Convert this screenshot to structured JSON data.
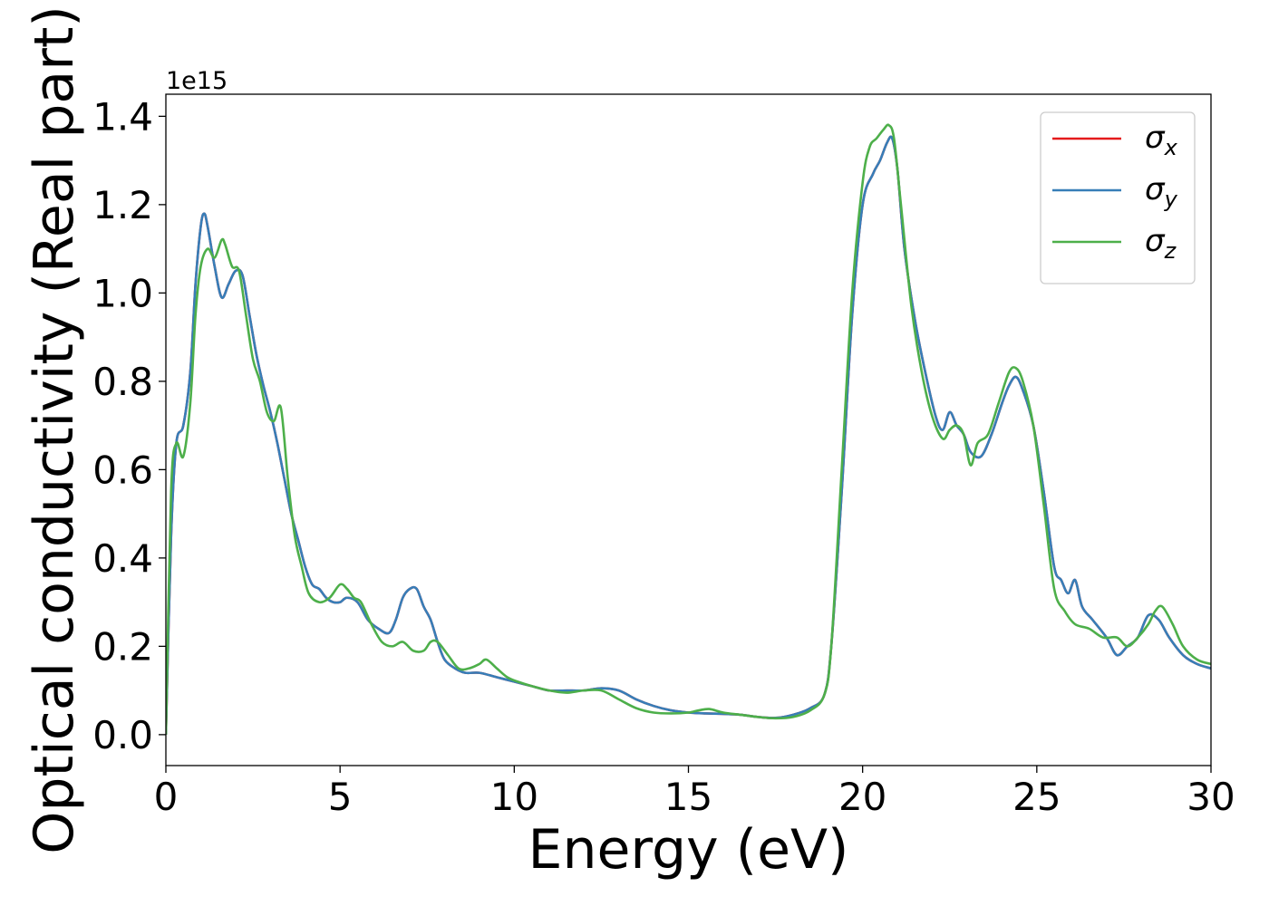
{
  "chart_data": {
    "type": "line",
    "xlabel": "Energy (eV)",
    "ylabel": "Optical conductivity (Real part)",
    "y_offset_label": "1e15",
    "xlim": [
      0,
      30
    ],
    "ylim": [
      -0.07,
      1.45
    ],
    "x_ticks": [
      0,
      5,
      10,
      15,
      20,
      25,
      30
    ],
    "x_tick_labels": [
      "0",
      "5",
      "10",
      "15",
      "20",
      "25",
      "30"
    ],
    "y_ticks": [
      0.0,
      0.2,
      0.4,
      0.6,
      0.8,
      1.0,
      1.2,
      1.4
    ],
    "y_tick_labels": [
      "0.0",
      "0.2",
      "0.4",
      "0.6",
      "0.8",
      "1.0",
      "1.2",
      "1.4"
    ],
    "grid": false,
    "legend_position": "upper right",
    "series": [
      {
        "name": "σx",
        "name_base": "σ",
        "name_sub": "x",
        "color": "#e41a1c",
        "x": [
          0,
          0.15,
          0.3,
          0.5,
          0.7,
          0.85,
          1.0,
          1.1,
          1.2,
          1.4,
          1.6,
          1.8,
          2.0,
          2.2,
          2.4,
          2.6,
          2.8,
          3.0,
          3.2,
          3.4,
          3.6,
          3.8,
          4.0,
          4.2,
          4.4,
          4.6,
          4.8,
          5.0,
          5.2,
          5.5,
          5.8,
          6.1,
          6.4,
          6.6,
          6.8,
          7.0,
          7.2,
          7.4,
          7.6,
          7.8,
          8.0,
          8.3,
          8.6,
          9.0,
          9.5,
          10.0,
          10.5,
          11.0,
          11.5,
          12.0,
          12.5,
          13.0,
          13.5,
          14.0,
          14.5,
          15.0,
          15.5,
          16.0,
          16.5,
          17.0,
          17.5,
          18.0,
          18.5,
          18.9,
          19.1,
          19.4,
          19.7,
          20.0,
          20.3,
          20.5,
          20.7,
          20.85,
          21.0,
          21.2,
          21.5,
          21.8,
          22.1,
          22.3,
          22.5,
          22.7,
          22.9,
          23.1,
          23.4,
          23.7,
          24.0,
          24.2,
          24.4,
          24.6,
          24.9,
          25.2,
          25.5,
          25.7,
          25.9,
          26.1,
          26.3,
          26.6,
          27.0,
          27.3,
          27.6,
          27.9,
          28.2,
          28.5,
          28.8,
          29.2,
          29.6,
          30.0
        ],
        "y": [
          0.0,
          0.45,
          0.66,
          0.7,
          0.82,
          1.02,
          1.15,
          1.18,
          1.15,
          1.06,
          0.99,
          1.02,
          1.05,
          1.04,
          0.95,
          0.86,
          0.79,
          0.73,
          0.66,
          0.58,
          0.5,
          0.44,
          0.38,
          0.34,
          0.33,
          0.31,
          0.3,
          0.3,
          0.31,
          0.3,
          0.26,
          0.24,
          0.23,
          0.26,
          0.31,
          0.33,
          0.33,
          0.29,
          0.26,
          0.21,
          0.17,
          0.15,
          0.14,
          0.14,
          0.13,
          0.12,
          0.11,
          0.1,
          0.1,
          0.1,
          0.105,
          0.1,
          0.08,
          0.065,
          0.055,
          0.05,
          0.048,
          0.047,
          0.045,
          0.04,
          0.038,
          0.045,
          0.06,
          0.09,
          0.2,
          0.55,
          0.95,
          1.2,
          1.27,
          1.3,
          1.34,
          1.35,
          1.28,
          1.1,
          0.94,
          0.82,
          0.72,
          0.69,
          0.73,
          0.7,
          0.68,
          0.64,
          0.63,
          0.68,
          0.75,
          0.79,
          0.81,
          0.78,
          0.7,
          0.55,
          0.38,
          0.35,
          0.32,
          0.35,
          0.29,
          0.26,
          0.22,
          0.18,
          0.2,
          0.22,
          0.27,
          0.26,
          0.22,
          0.18,
          0.16,
          0.15
        ]
      },
      {
        "name": "σy",
        "name_base": "σ",
        "name_sub": "y",
        "color": "#377eb8",
        "x": [
          0,
          0.15,
          0.3,
          0.5,
          0.7,
          0.85,
          1.0,
          1.1,
          1.2,
          1.4,
          1.6,
          1.8,
          2.0,
          2.2,
          2.4,
          2.6,
          2.8,
          3.0,
          3.2,
          3.4,
          3.6,
          3.8,
          4.0,
          4.2,
          4.4,
          4.6,
          4.8,
          5.0,
          5.2,
          5.5,
          5.8,
          6.1,
          6.4,
          6.6,
          6.8,
          7.0,
          7.2,
          7.4,
          7.6,
          7.8,
          8.0,
          8.3,
          8.6,
          9.0,
          9.5,
          10.0,
          10.5,
          11.0,
          11.5,
          12.0,
          12.5,
          13.0,
          13.5,
          14.0,
          14.5,
          15.0,
          15.5,
          16.0,
          16.5,
          17.0,
          17.5,
          18.0,
          18.5,
          18.9,
          19.1,
          19.4,
          19.7,
          20.0,
          20.3,
          20.5,
          20.7,
          20.85,
          21.0,
          21.2,
          21.5,
          21.8,
          22.1,
          22.3,
          22.5,
          22.7,
          22.9,
          23.1,
          23.4,
          23.7,
          24.0,
          24.2,
          24.4,
          24.6,
          24.9,
          25.2,
          25.5,
          25.7,
          25.9,
          26.1,
          26.3,
          26.6,
          27.0,
          27.3,
          27.6,
          27.9,
          28.2,
          28.5,
          28.8,
          29.2,
          29.6,
          30.0
        ],
        "y": [
          0.0,
          0.45,
          0.66,
          0.7,
          0.82,
          1.02,
          1.15,
          1.18,
          1.15,
          1.06,
          0.99,
          1.02,
          1.05,
          1.04,
          0.95,
          0.86,
          0.79,
          0.73,
          0.66,
          0.58,
          0.5,
          0.44,
          0.38,
          0.34,
          0.33,
          0.31,
          0.3,
          0.3,
          0.31,
          0.3,
          0.26,
          0.24,
          0.23,
          0.26,
          0.31,
          0.33,
          0.33,
          0.29,
          0.26,
          0.21,
          0.17,
          0.15,
          0.14,
          0.14,
          0.13,
          0.12,
          0.11,
          0.1,
          0.1,
          0.1,
          0.105,
          0.1,
          0.08,
          0.065,
          0.055,
          0.05,
          0.048,
          0.047,
          0.045,
          0.04,
          0.038,
          0.045,
          0.06,
          0.09,
          0.2,
          0.55,
          0.95,
          1.2,
          1.27,
          1.3,
          1.34,
          1.35,
          1.28,
          1.1,
          0.94,
          0.82,
          0.72,
          0.69,
          0.73,
          0.7,
          0.68,
          0.64,
          0.63,
          0.68,
          0.75,
          0.79,
          0.81,
          0.78,
          0.7,
          0.55,
          0.38,
          0.35,
          0.32,
          0.35,
          0.29,
          0.26,
          0.22,
          0.18,
          0.2,
          0.22,
          0.27,
          0.26,
          0.22,
          0.18,
          0.16,
          0.15
        ]
      },
      {
        "name": "σz",
        "name_base": "σ",
        "name_sub": "z",
        "color": "#4daf4a",
        "x": [
          0,
          0.15,
          0.3,
          0.5,
          0.7,
          0.85,
          1.0,
          1.2,
          1.4,
          1.6,
          1.7,
          1.9,
          2.1,
          2.3,
          2.5,
          2.7,
          2.9,
          3.1,
          3.3,
          3.5,
          3.7,
          3.9,
          4.1,
          4.4,
          4.7,
          5.0,
          5.2,
          5.4,
          5.6,
          5.9,
          6.2,
          6.5,
          6.8,
          7.1,
          7.4,
          7.6,
          7.8,
          8.1,
          8.4,
          8.7,
          9.0,
          9.2,
          9.5,
          9.8,
          10.1,
          10.5,
          11.0,
          11.5,
          12.0,
          12.5,
          13.0,
          13.5,
          14.0,
          14.5,
          15.0,
          15.3,
          15.6,
          16.0,
          16.5,
          17.0,
          17.5,
          18.0,
          18.5,
          18.9,
          19.1,
          19.4,
          19.7,
          20.0,
          20.2,
          20.4,
          20.6,
          20.75,
          20.9,
          21.1,
          21.4,
          21.7,
          22.0,
          22.3,
          22.5,
          22.7,
          22.9,
          23.1,
          23.3,
          23.6,
          23.9,
          24.2,
          24.4,
          24.6,
          24.9,
          25.2,
          25.5,
          25.8,
          26.1,
          26.5,
          26.9,
          27.3,
          27.6,
          27.9,
          28.2,
          28.4,
          28.6,
          28.9,
          29.2,
          29.6,
          30.0
        ],
        "y": [
          0.0,
          0.55,
          0.66,
          0.63,
          0.75,
          0.95,
          1.06,
          1.1,
          1.08,
          1.12,
          1.11,
          1.06,
          1.05,
          0.95,
          0.85,
          0.8,
          0.73,
          0.71,
          0.74,
          0.58,
          0.45,
          0.38,
          0.32,
          0.3,
          0.31,
          0.34,
          0.33,
          0.31,
          0.3,
          0.25,
          0.21,
          0.2,
          0.21,
          0.19,
          0.19,
          0.21,
          0.21,
          0.18,
          0.15,
          0.15,
          0.16,
          0.17,
          0.15,
          0.13,
          0.12,
          0.11,
          0.1,
          0.095,
          0.1,
          0.1,
          0.08,
          0.06,
          0.05,
          0.048,
          0.05,
          0.055,
          0.058,
          0.05,
          0.045,
          0.04,
          0.037,
          0.04,
          0.055,
          0.09,
          0.2,
          0.6,
          1.0,
          1.25,
          1.33,
          1.35,
          1.37,
          1.38,
          1.35,
          1.2,
          0.97,
          0.82,
          0.72,
          0.67,
          0.69,
          0.7,
          0.68,
          0.61,
          0.66,
          0.68,
          0.75,
          0.82,
          0.83,
          0.8,
          0.7,
          0.52,
          0.33,
          0.28,
          0.25,
          0.24,
          0.22,
          0.22,
          0.2,
          0.22,
          0.25,
          0.28,
          0.29,
          0.25,
          0.2,
          0.17,
          0.16
        ]
      }
    ]
  }
}
